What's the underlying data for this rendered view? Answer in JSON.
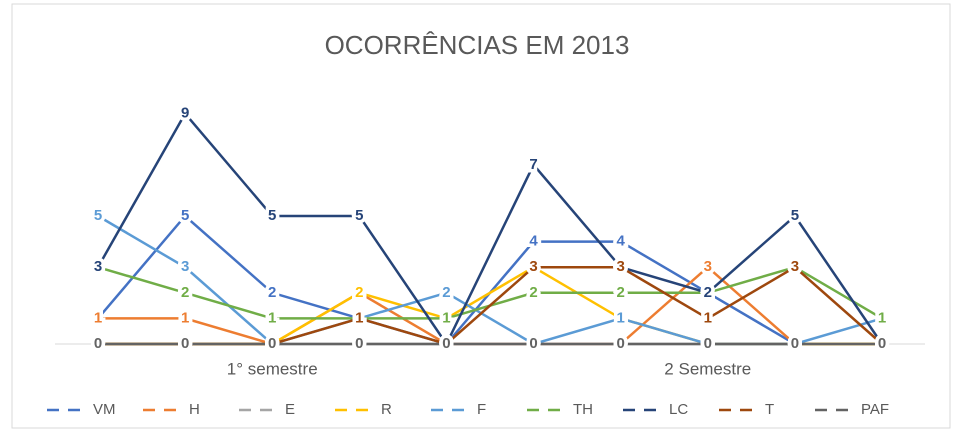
{
  "chart_data": {
    "type": "line",
    "title": "OCORRÊNCIAS EM 2013",
    "categories": [
      null,
      null,
      null,
      null,
      null,
      null,
      null,
      null,
      null,
      null
    ],
    "category_groups": [
      "1° semestre",
      "2 Semestre"
    ],
    "ylim": [
      0,
      10
    ],
    "data_labels": true,
    "legend": "bottom",
    "series": [
      {
        "name": "VM",
        "color": "#4472c4",
        "values": [
          1,
          5,
          2,
          1,
          0,
          4,
          4,
          2,
          0,
          0
        ]
      },
      {
        "name": "H",
        "color": "#ed7d31",
        "values": [
          1,
          1,
          0,
          2,
          0,
          0,
          0,
          3,
          0,
          0
        ]
      },
      {
        "name": "E",
        "color": "#a5a5a5",
        "values": [
          0,
          0,
          0,
          0,
          0,
          0,
          0,
          0,
          0,
          0
        ]
      },
      {
        "name": "R",
        "color": "#ffc000",
        "values": [
          0,
          0,
          0,
          2,
          1,
          3,
          1,
          0,
          0,
          0
        ]
      },
      {
        "name": "F",
        "color": "#5b9bd5",
        "values": [
          5,
          3,
          0,
          1,
          2,
          0,
          1,
          0,
          0,
          1
        ]
      },
      {
        "name": "TH",
        "color": "#70ad47",
        "values": [
          3,
          2,
          1,
          1,
          1,
          2,
          2,
          2,
          3,
          1
        ]
      },
      {
        "name": "LC",
        "color": "#264478",
        "values": [
          3,
          9,
          5,
          5,
          0,
          7,
          3,
          2,
          5,
          0
        ]
      },
      {
        "name": "T",
        "color": "#9e480e",
        "values": [
          0,
          0,
          0,
          1,
          0,
          3,
          3,
          1,
          3,
          0
        ]
      },
      {
        "name": "PAF",
        "color": "#636363",
        "values": [
          0,
          0,
          0,
          0,
          0,
          0,
          0,
          0,
          0,
          0
        ]
      }
    ]
  }
}
